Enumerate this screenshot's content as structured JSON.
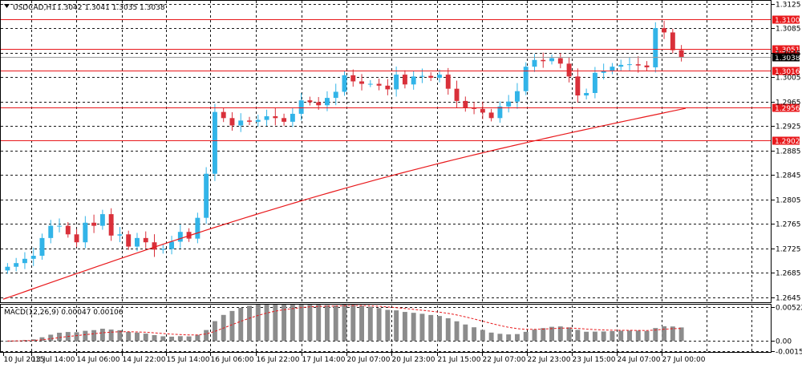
{
  "header": {
    "symbol_label": "USDCAD,H1",
    "ohlc_text": "1.3042 1.3041 1.3035 1.3038",
    "menu_icon": "triangle-down-icon"
  },
  "macd_panel": {
    "label": "MACD(12,26,9) 0.00047 0.00106"
  },
  "colors": {
    "bull": "#32b4e8",
    "bear": "#d9303a",
    "ma": "#e8191c",
    "level": "#e8191c",
    "histogram": "#8c8c8c",
    "signal": "#e8191c",
    "current_price_bg": "#000000"
  },
  "chart_data": [
    {
      "type": "candlestick",
      "title": "USDCAD,H1",
      "x": [
        "10 Jul 2015",
        "13 Jul 14:00",
        "14 Jul 06:00",
        "14 Jul 22:00",
        "15 Jul 14:00",
        "16 Jul 06:00",
        "16 Jul 22:00",
        "17 Jul 14:00",
        "20 Jul 07:00",
        "20 Jul 23:00",
        "21 Jul 15:00",
        "22 Jul 07:00",
        "22 Jul 23:00",
        "23 Jul 15:00",
        "24 Jul 07:00",
        "27 Jul 00:00"
      ],
      "x_tick_labels": [
        "10 Jul 2015",
        "13 Jul 14:00",
        "14 Jul 06:00",
        "14 Jul 22:00",
        "15 Jul 14:00",
        "16 Jul 06:00",
        "16 Jul 22:00",
        "17 Jul 14:00",
        "20 Jul 07:00",
        "20 Jul 23:00",
        "21 Jul 15:00",
        "22 Jul 07:00",
        "22 Jul 23:00",
        "23 Jul 15:00",
        "24 Jul 07:00",
        "27 Jul 00:00"
      ],
      "y_tick_labels": [
        "1.3125",
        "1.3085",
        "1.3045",
        "1.3005",
        "1.2965",
        "1.2925",
        "1.2885",
        "1.2845",
        "1.2805",
        "1.2765",
        "1.2725",
        "1.2685",
        "1.2645"
      ],
      "ylim": [
        1.2637,
        1.3131
      ],
      "closes": [
        1.2695,
        1.2701,
        1.2708,
        1.2713,
        1.2742,
        1.2762,
        1.2762,
        1.2748,
        1.2735,
        1.2767,
        1.2762,
        1.2781,
        1.2746,
        1.2748,
        1.2728,
        1.2742,
        1.2735,
        1.2723,
        1.2724,
        1.2736,
        1.2752,
        1.2741,
        1.2775,
        1.2847,
        1.2948,
        1.2938,
        1.2926,
        1.2934,
        1.2932,
        1.2935,
        1.2941,
        1.2938,
        1.2932,
        1.2945,
        1.2967,
        1.2964,
        1.2959,
        1.2971,
        1.2981,
        1.3008,
        1.2998,
        1.2994,
        1.2994,
        1.2991,
        1.2985,
        1.3009,
        1.2993,
        1.3006,
        1.3007,
        1.3004,
        1.3009,
        1.2986,
        1.2966,
        1.2955,
        1.2953,
        1.2947,
        1.2938,
        1.2957,
        1.2965,
        1.2982,
        1.3022,
        1.3033,
        1.3031,
        1.3036,
        1.3027,
        1.3006,
        1.2975,
        1.2979,
        1.3012,
        1.3015,
        1.3022,
        1.3025,
        1.3026,
        1.3024,
        1.3021,
        1.3085,
        1.3078,
        1.3049,
        1.3038
      ],
      "closes_note": "hourly closes read approximately from the candlesticks",
      "moving_average": {
        "start": 1.2642,
        "end": 1.2954
      },
      "levels": [
        1.31,
        1.3051,
        1.3016,
        1.2956,
        1.2902
      ],
      "current_price": 1.3038,
      "grid": true
    },
    {
      "type": "bar",
      "title": "MACD(12,26,9) 0.00047 0.00106",
      "series": [
        {
          "name": "MACD",
          "role": "histogram"
        },
        {
          "name": "signal",
          "role": "signal line"
        }
      ],
      "y_tick_labels": [
        "0.00522",
        "0.00",
        "-0.00154"
      ],
      "ylim": [
        -0.0017,
        0.0056
      ],
      "grid": true
    }
  ]
}
